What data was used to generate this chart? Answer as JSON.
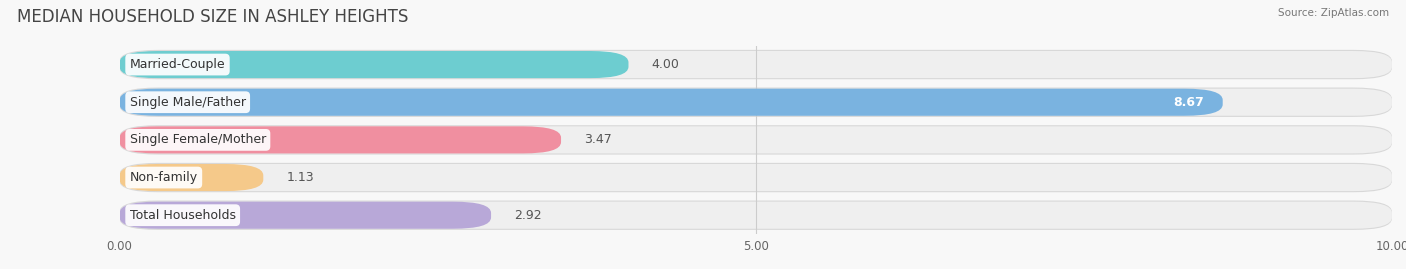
{
  "title": "MEDIAN HOUSEHOLD SIZE IN ASHLEY HEIGHTS",
  "source": "Source: ZipAtlas.com",
  "categories": [
    "Married-Couple",
    "Single Male/Father",
    "Single Female/Mother",
    "Non-family",
    "Total Households"
  ],
  "values": [
    4.0,
    8.67,
    3.47,
    1.13,
    2.92
  ],
  "bar_colors": [
    "#6dcdd0",
    "#7ab3e0",
    "#f08fa0",
    "#f5c98a",
    "#b8a8d8"
  ],
  "value_colors": [
    "#555555",
    "#ffffff",
    "#555555",
    "#555555",
    "#555555"
  ],
  "xlim": [
    0,
    10
  ],
  "xticks": [
    0.0,
    5.0,
    10.0
  ],
  "xtick_labels": [
    "0.00",
    "5.00",
    "10.00"
  ],
  "background_color": "#f2f2f2",
  "bar_bg_color": "#e8e8e8",
  "title_fontsize": 12,
  "label_fontsize": 9,
  "value_fontsize": 9,
  "figsize": [
    14.06,
    2.69
  ],
  "dpi": 100
}
